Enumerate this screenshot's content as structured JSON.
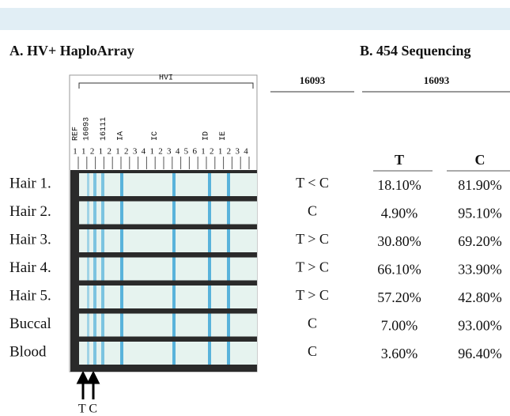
{
  "panel_a": {
    "title": "A. HV+ HaploArray",
    "region": "HVI",
    "probe_groups": [
      {
        "label": "REF",
        "numbers": [
          "1"
        ],
        "color": "#d42a2a"
      },
      {
        "label": "16093",
        "numbers": [
          "1",
          "2"
        ],
        "color": "#2a3fb0"
      },
      {
        "label": "16111",
        "numbers": [
          "1",
          "2"
        ],
        "color": "#d42a2a"
      },
      {
        "label": "IA",
        "numbers": [
          "1",
          "2",
          "3",
          "4"
        ],
        "color": "#2a3fb0"
      },
      {
        "label": "IC",
        "numbers": [
          "1",
          "2",
          "3",
          "4",
          "5",
          "6"
        ],
        "color": "#d42a2a"
      },
      {
        "label": "ID",
        "numbers": [
          "1",
          "2"
        ],
        "color": "#2a3fb0"
      },
      {
        "label": "IE",
        "numbers": [
          "1",
          "2",
          "3",
          "4"
        ],
        "color": "#d42a2a"
      }
    ],
    "samples": [
      "Hair 1.",
      "Hair 2.",
      "Hair 3.",
      "Hair 4.",
      "Hair 5.",
      "Buccal",
      "Blood"
    ],
    "arrows": "T C"
  },
  "calls": {
    "header": "16093",
    "values": [
      "T < C",
      "C",
      "T > C",
      "T > C",
      "T > C",
      "C",
      "C"
    ]
  },
  "panel_b": {
    "title": "B. 454 Sequencing",
    "position": "16093",
    "columns": [
      "T",
      "C"
    ],
    "rows": [
      [
        "18.10%",
        "81.90%"
      ],
      [
        "4.90%",
        "95.10%"
      ],
      [
        "30.80%",
        "69.20%"
      ],
      [
        "66.10%",
        "33.90%"
      ],
      [
        "57.20%",
        "42.80%"
      ],
      [
        "7.00%",
        "93.00%"
      ],
      [
        "3.60%",
        "96.40%"
      ]
    ]
  }
}
